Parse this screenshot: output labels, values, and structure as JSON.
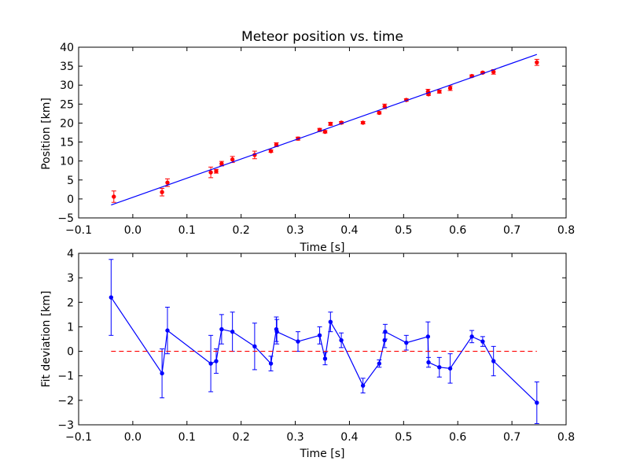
{
  "chart_data": [
    {
      "type": "scatter",
      "title": "Meteor position vs. time",
      "xlabel": "Time [s]",
      "ylabel": "Position [km]",
      "xlim": [
        -0.1,
        0.8
      ],
      "ylim": [
        -5,
        40
      ],
      "xticks": [
        "−0.1",
        "0.0",
        "0.1",
        "0.2",
        "0.3",
        "0.4",
        "0.5",
        "0.6",
        "0.7",
        "0.8"
      ],
      "yticks": [
        "−5",
        "0",
        "5",
        "10",
        "15",
        "20",
        "25",
        "30",
        "35",
        "40"
      ],
      "xtick_values": [
        -0.1,
        0,
        0.1,
        0.2,
        0.3,
        0.4,
        0.5,
        0.6,
        0.7,
        0.8
      ],
      "ytick_values": [
        -5,
        0,
        5,
        10,
        15,
        20,
        25,
        30,
        35,
        40
      ],
      "grid": false,
      "series": [
        {
          "kind": "errorbar-points",
          "color": "#ff0000",
          "x": [
            -0.035,
            0.054,
            0.064,
            0.144,
            0.154,
            0.164,
            0.184,
            0.225,
            0.255,
            0.265,
            0.305,
            0.345,
            0.355,
            0.365,
            0.385,
            0.425,
            0.455,
            0.465,
            0.505,
            0.545,
            0.546,
            0.566,
            0.586,
            0.626,
            0.646,
            0.666,
            0.746
          ],
          "y": [
            0.6,
            1.8,
            4.3,
            7.0,
            7.3,
            9.3,
            10.4,
            11.6,
            12.6,
            14.3,
            15.9,
            18.2,
            17.7,
            19.8,
            20.1,
            20.1,
            22.7,
            24.4,
            26.1,
            28.3,
            27.6,
            28.3,
            29.2,
            32.4,
            33.3,
            33.5,
            36.0
          ],
          "yerr": [
            1.5,
            1.0,
            1.0,
            1.4,
            0.5,
            0.6,
            0.8,
            1.0,
            0.3,
            0.5,
            0.4,
            0.4,
            0.3,
            0.4,
            0.3,
            0.3,
            0.3,
            0.6,
            0.3,
            0.6,
            0.3,
            0.4,
            0.6,
            0.3,
            0.2,
            0.6,
            0.8
          ]
        },
        {
          "kind": "fit-line",
          "color": "#0000ff",
          "x": [
            -0.04,
            0.746
          ],
          "y": [
            -1.6,
            38.1
          ]
        }
      ]
    },
    {
      "type": "line",
      "title": "",
      "xlabel": "Time [s]",
      "ylabel": "Fit deviation [km]",
      "xlim": [
        -0.1,
        0.8
      ],
      "ylim": [
        -3,
        4
      ],
      "xticks": [
        "−0.1",
        "0.0",
        "0.1",
        "0.2",
        "0.3",
        "0.4",
        "0.5",
        "0.6",
        "0.7",
        "0.8"
      ],
      "yticks": [
        "−3",
        "−2",
        "−1",
        "0",
        "1",
        "2",
        "3",
        "4"
      ],
      "xtick_values": [
        -0.1,
        0,
        0.1,
        0.2,
        0.3,
        0.4,
        0.5,
        0.6,
        0.7,
        0.8
      ],
      "ytick_values": [
        -3,
        -2,
        -1,
        0,
        1,
        2,
        3,
        4
      ],
      "grid": false,
      "series": [
        {
          "kind": "errorbar-line",
          "color": "#0000ff",
          "x": [
            -0.04,
            0.054,
            0.064,
            0.144,
            0.154,
            0.164,
            0.184,
            0.225,
            0.255,
            0.265,
            0.266,
            0.305,
            0.345,
            0.355,
            0.365,
            0.385,
            0.425,
            0.455,
            0.465,
            0.466,
            0.505,
            0.545,
            0.546,
            0.566,
            0.586,
            0.626,
            0.646,
            0.666,
            0.746
          ],
          "y": [
            2.2,
            -0.9,
            0.85,
            -0.5,
            -0.4,
            0.9,
            0.8,
            0.2,
            -0.5,
            0.9,
            0.8,
            0.4,
            0.65,
            -0.3,
            1.2,
            0.45,
            -1.4,
            -0.5,
            0.45,
            0.8,
            0.35,
            0.6,
            -0.45,
            -0.65,
            -0.7,
            0.6,
            0.4,
            -0.4,
            -2.1
          ],
          "yerr": [
            1.55,
            1.0,
            0.95,
            1.15,
            0.5,
            0.6,
            0.8,
            0.95,
            0.3,
            0.5,
            0.5,
            0.4,
            0.35,
            0.25,
            0.4,
            0.3,
            0.3,
            0.15,
            0.3,
            0.3,
            0.3,
            0.6,
            0.2,
            0.4,
            0.6,
            0.25,
            0.2,
            0.6,
            0.85
          ]
        },
        {
          "kind": "reference-line",
          "color": "#ff0000",
          "dashed": true,
          "x": [
            -0.04,
            0.746
          ],
          "y": [
            0,
            0
          ]
        }
      ]
    }
  ]
}
